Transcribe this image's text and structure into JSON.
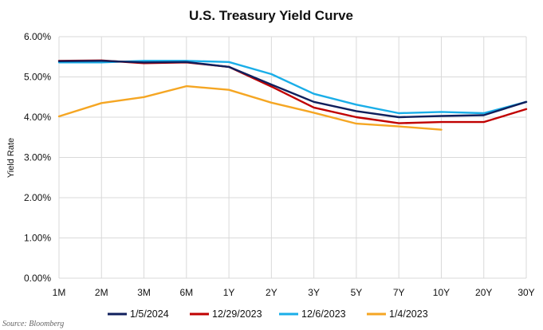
{
  "chart_data": {
    "type": "line",
    "title": "U.S. Treasury Yield Curve",
    "xlabel": "",
    "ylabel": "Yield Rate",
    "categories": [
      "1M",
      "2M",
      "3M",
      "6M",
      "1Y",
      "2Y",
      "3Y",
      "5Y",
      "7Y",
      "10Y",
      "20Y",
      "30Y"
    ],
    "ylim": [
      0,
      6
    ],
    "yticks": [
      "0.00%",
      "1.00%",
      "2.00%",
      "3.00%",
      "4.00%",
      "5.00%",
      "6.00%"
    ],
    "grid": true,
    "legend_position": "bottom",
    "series": [
      {
        "name": "1/5/2024",
        "color": "#0f1f5c",
        "values": [
          5.39,
          5.4,
          5.36,
          5.37,
          5.25,
          4.81,
          4.38,
          4.15,
          4.0,
          4.03,
          4.05,
          4.38
        ]
      },
      {
        "name": "12/29/2023",
        "color": "#c00000",
        "values": [
          5.4,
          5.41,
          5.34,
          5.36,
          5.25,
          4.76,
          4.24,
          4.0,
          3.85,
          3.88,
          3.88,
          4.2
        ]
      },
      {
        "name": "12/6/2023",
        "color": "#1aaee8",
        "values": [
          5.36,
          5.36,
          5.4,
          5.4,
          5.37,
          5.07,
          4.58,
          4.31,
          4.1,
          4.13,
          4.1,
          4.38
        ]
      },
      {
        "name": "1/4/2023",
        "color": "#f5a623",
        "values": [
          4.02,
          4.35,
          4.5,
          4.77,
          4.68,
          4.36,
          4.11,
          3.84,
          3.77,
          3.69,
          null,
          null
        ]
      }
    ],
    "source": "Source: Bloomberg"
  }
}
